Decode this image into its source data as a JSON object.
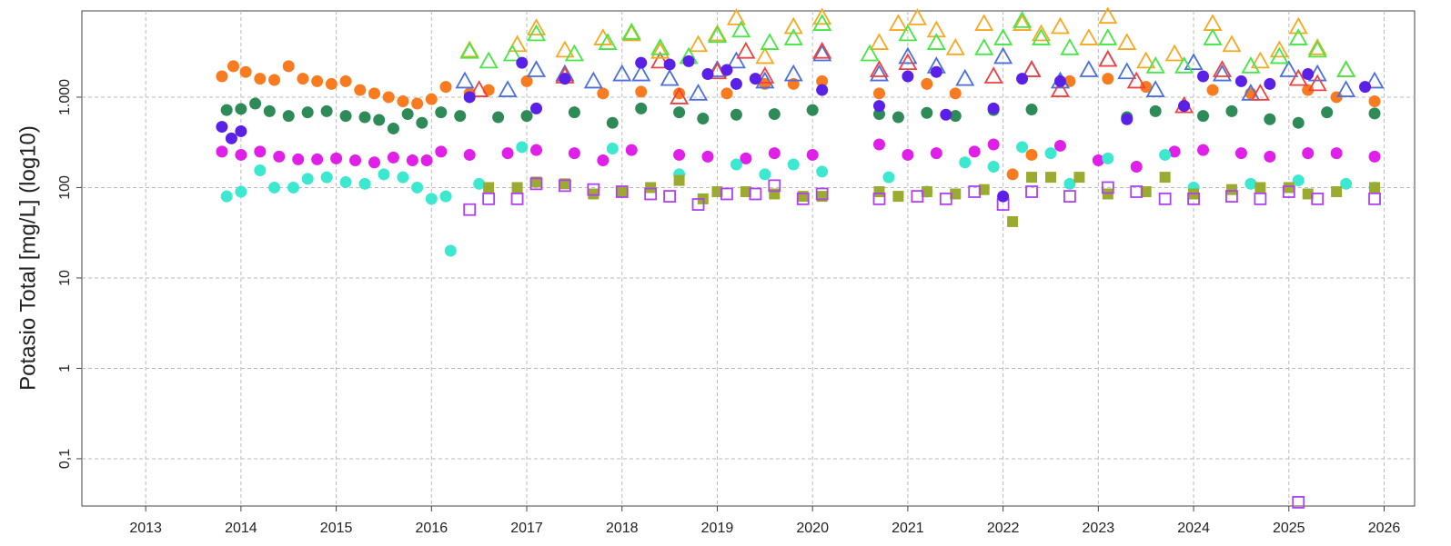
{
  "chart_data": {
    "type": "scatter",
    "y_label": "Potasio Total [mg/L] (log10)",
    "log_y": true,
    "grid": true,
    "xlim": [
      2012.33,
      2026.32
    ],
    "xticks": [
      2013,
      2014,
      2015,
      2016,
      2017,
      2018,
      2019,
      2020,
      2021,
      2022,
      2023,
      2024,
      2025,
      2026
    ],
    "ylim": [
      0.03,
      9000
    ],
    "yticks": [
      {
        "value": 0.1,
        "label": "0,1"
      },
      1,
      10,
      100,
      {
        "value": 1000,
        "label": "1.000"
      }
    ],
    "series": [
      {
        "color": "#f97b1f",
        "marker": "circle",
        "filled": true,
        "x": [
          2013.8,
          2013.92,
          2014.05,
          2014.2,
          2014.35,
          2014.5,
          2014.65,
          2014.8,
          2014.95,
          2015.1,
          2015.25,
          2015.4,
          2015.55,
          2015.7,
          2015.85,
          2016.0,
          2016.15,
          2016.4,
          2016.6,
          2017.0,
          2017.4,
          2017.8,
          2018.2,
          2018.6,
          2019.1,
          2019.5,
          2019.8,
          2020.1,
          2020.7,
          2021.2,
          2021.5,
          2022.1,
          2022.3,
          2022.7,
          2023.1,
          2023.5,
          2023.9,
          2024.2,
          2024.6,
          2025.2,
          2025.5,
          2025.9
        ],
        "values": [
          1700,
          2200,
          1900,
          1600,
          1550,
          2200,
          1600,
          1500,
          1400,
          1500,
          1200,
          1100,
          1000,
          900,
          850,
          950,
          1300,
          1100,
          1200,
          1500,
          1600,
          1100,
          1150,
          1100,
          1100,
          1400,
          1400,
          1500,
          1100,
          1400,
          1100,
          140,
          230,
          1500,
          1600,
          1300,
          800,
          1200,
          1100,
          1200,
          1000,
          900
        ]
      },
      {
        "color": "#2e8b57",
        "marker": "circle",
        "filled": true,
        "x": [
          2013.85,
          2014.0,
          2014.15,
          2014.3,
          2014.5,
          2014.7,
          2014.9,
          2015.1,
          2015.3,
          2015.45,
          2015.6,
          2015.75,
          2015.9,
          2016.1,
          2016.3,
          2016.7,
          2017.0,
          2017.5,
          2017.9,
          2018.2,
          2018.6,
          2018.85,
          2019.2,
          2019.6,
          2020.0,
          2020.7,
          2020.9,
          2021.2,
          2021.5,
          2021.9,
          2022.3,
          2023.3,
          2023.6,
          2024.1,
          2024.4,
          2024.8,
          2025.1,
          2025.4,
          2025.9
        ],
        "values": [
          720,
          740,
          850,
          700,
          620,
          680,
          700,
          620,
          600,
          560,
          450,
          650,
          520,
          680,
          620,
          600,
          620,
          680,
          520,
          750,
          680,
          580,
          640,
          650,
          720,
          650,
          600,
          670,
          620,
          720,
          730,
          600,
          700,
          620,
          700,
          570,
          520,
          680,
          660
        ]
      },
      {
        "color": "#e020e8",
        "marker": "circle",
        "filled": true,
        "x": [
          2013.8,
          2014.0,
          2014.2,
          2014.4,
          2014.6,
          2014.8,
          2015.0,
          2015.2,
          2015.4,
          2015.6,
          2015.8,
          2015.95,
          2016.1,
          2016.4,
          2016.8,
          2017.1,
          2017.5,
          2017.8,
          2018.1,
          2018.6,
          2018.9,
          2019.3,
          2019.6,
          2020.0,
          2020.7,
          2021.0,
          2021.3,
          2021.7,
          2021.9,
          2022.6,
          2023.0,
          2023.4,
          2023.8,
          2024.1,
          2024.5,
          2024.8,
          2025.2,
          2025.5,
          2025.9
        ],
        "values": [
          250,
          230,
          250,
          220,
          205,
          205,
          210,
          200,
          190,
          215,
          200,
          200,
          250,
          230,
          240,
          260,
          240,
          200,
          260,
          230,
          220,
          210,
          240,
          230,
          300,
          230,
          240,
          250,
          300,
          290,
          200,
          170,
          250,
          260,
          240,
          220,
          240,
          240,
          220
        ]
      },
      {
        "color": "#3de8d0",
        "marker": "circle",
        "filled": true,
        "x": [
          2013.85,
          2014.0,
          2014.2,
          2014.35,
          2014.55,
          2014.7,
          2014.9,
          2015.1,
          2015.3,
          2015.5,
          2015.7,
          2015.85,
          2016.0,
          2016.15,
          2016.2,
          2016.5,
          2016.95,
          2017.9,
          2018.6,
          2019.2,
          2019.5,
          2019.8,
          2020.1,
          2020.8,
          2021.2,
          2021.6,
          2021.9,
          2022.2,
          2022.5,
          2022.7,
          2023.1,
          2023.7,
          2024.0,
          2024.6,
          2025.1,
          2025.6,
          2025.9
        ],
        "values": [
          80,
          90,
          155,
          100,
          100,
          125,
          130,
          115,
          110,
          140,
          130,
          100,
          75,
          80,
          20,
          110,
          280,
          270,
          140,
          180,
          140,
          180,
          150,
          130,
          90,
          190,
          170,
          280,
          240,
          110,
          210,
          230,
          100,
          110,
          120,
          110,
          100
        ]
      },
      {
        "color": "#9aab2f",
        "marker": "square",
        "filled": true,
        "x": [
          2016.6,
          2016.9,
          2017.1,
          2017.4,
          2017.7,
          2018.0,
          2018.3,
          2018.6,
          2018.85,
          2019.0,
          2019.3,
          2019.6,
          2019.9,
          2020.1,
          2020.7,
          2020.9,
          2021.2,
          2021.5,
          2021.8,
          2022.1,
          2022.3,
          2022.5,
          2022.8,
          2023.1,
          2023.5,
          2023.7,
          2024.0,
          2024.4,
          2024.7,
          2025.0,
          2025.2,
          2025.5,
          2025.9
        ],
        "values": [
          100,
          100,
          115,
          110,
          85,
          90,
          100,
          120,
          75,
          90,
          90,
          85,
          80,
          80,
          90,
          80,
          90,
          85,
          95,
          42,
          130,
          130,
          130,
          85,
          90,
          130,
          85,
          95,
          100,
          100,
          85,
          90,
          100
        ]
      },
      {
        "color": "#b040f0",
        "marker": "square",
        "filled": false,
        "x": [
          2016.4,
          2016.6,
          2016.9,
          2017.1,
          2017.4,
          2017.7,
          2018.0,
          2018.3,
          2018.5,
          2018.8,
          2019.1,
          2019.4,
          2019.6,
          2019.9,
          2020.1,
          2020.7,
          2021.1,
          2021.4,
          2021.7,
          2022.0,
          2022.3,
          2022.7,
          2023.1,
          2023.4,
          2023.7,
          2024.0,
          2024.4,
          2024.7,
          2025.0,
          2025.1,
          2025.3,
          2025.9
        ],
        "values": [
          57,
          75,
          75,
          110,
          105,
          95,
          90,
          85,
          80,
          65,
          85,
          85,
          105,
          75,
          85,
          75,
          80,
          75,
          90,
          65,
          90,
          80,
          100,
          90,
          75,
          75,
          80,
          75,
          90,
          0.033,
          75,
          75
        ]
      },
      {
        "color": "#4a6fe0",
        "marker": "triangle",
        "filled": false,
        "x": [
          2016.35,
          2016.8,
          2017.1,
          2017.4,
          2017.7,
          2018.0,
          2018.2,
          2018.5,
          2018.8,
          2019.0,
          2019.2,
          2019.5,
          2019.8,
          2020.1,
          2020.7,
          2021.0,
          2021.3,
          2021.6,
          2022.0,
          2022.3,
          2022.6,
          2022.9,
          2023.1,
          2023.3,
          2023.6,
          2024.0,
          2024.3,
          2024.6,
          2025.0,
          2025.3,
          2025.6,
          2025.9
        ],
        "values": [
          1500,
          1200,
          2000,
          1800,
          1500,
          1800,
          1800,
          1600,
          1100,
          2000,
          2500,
          1500,
          1800,
          3000,
          1800,
          2800,
          2200,
          1600,
          2800,
          2000,
          1500,
          2000,
          2600,
          1900,
          1200,
          2400,
          1800,
          1100,
          2000,
          1800,
          1200,
          1500
        ]
      },
      {
        "color": "#f04040",
        "marker": "triangle",
        "filled": false,
        "x": [
          2016.5,
          2017.4,
          2018.4,
          2018.6,
          2019.0,
          2019.3,
          2019.5,
          2020.1,
          2020.7,
          2021.0,
          2021.9,
          2022.3,
          2022.6,
          2023.1,
          2023.4,
          2023.9,
          2024.3,
          2024.7,
          2025.1,
          2025.3
        ],
        "values": [
          1200,
          1700,
          2500,
          1000,
          1900,
          3200,
          1700,
          3200,
          2000,
          2400,
          1700,
          2000,
          1200,
          2600,
          1500,
          800,
          2000,
          1100,
          1600,
          1400
        ]
      },
      {
        "color": "#f8a820",
        "marker": "triangle",
        "filled": false,
        "x": [
          2016.4,
          2016.9,
          2017.1,
          2017.4,
          2017.8,
          2018.1,
          2018.4,
          2018.8,
          2019.0,
          2019.2,
          2019.5,
          2019.8,
          2020.1,
          2020.7,
          2020.9,
          2021.1,
          2021.3,
          2021.5,
          2021.8,
          2022.2,
          2022.4,
          2022.6,
          2022.9,
          2023.1,
          2023.3,
          2023.5,
          2023.8,
          2024.2,
          2024.4,
          2024.7,
          2024.9,
          2025.1,
          2025.3,
          2025.6
        ],
        "values": [
          3300,
          3800,
          5800,
          3300,
          4500,
          5000,
          3200,
          3800,
          5000,
          7500,
          2800,
          6000,
          7600,
          4000,
          6500,
          7500,
          5500,
          3500,
          6500,
          6500,
          5000,
          6000,
          4500,
          7800,
          4000,
          2500,
          3000,
          6500,
          3800,
          2500,
          3300,
          6000,
          3500,
          2000
        ]
      },
      {
        "color": "#44e844",
        "marker": "triangle",
        "filled": false,
        "x": [
          2016.4,
          2016.6,
          2016.85,
          2017.1,
          2017.5,
          2017.85,
          2018.1,
          2018.4,
          2018.7,
          2019.0,
          2019.25,
          2019.55,
          2019.8,
          2020.1,
          2020.6,
          2021.0,
          2021.3,
          2021.8,
          2022.0,
          2022.2,
          2022.4,
          2022.7,
          2023.1,
          2023.6,
          2023.9,
          2024.2,
          2024.6,
          2024.9,
          2025.1,
          2025.3,
          2025.6
        ],
        "values": [
          3200,
          2500,
          3000,
          5000,
          3000,
          4000,
          5200,
          3500,
          2800,
          4800,
          5500,
          4000,
          4500,
          6500,
          3000,
          5000,
          4000,
          3500,
          4500,
          7000,
          4500,
          3500,
          4500,
          2200,
          2200,
          4500,
          2200,
          2800,
          4500,
          3300,
          2000
        ]
      },
      {
        "color": "#5a20e8",
        "marker": "circle",
        "filled": true,
        "x": [
          2013.8,
          2013.9,
          2014.0,
          2016.4,
          2016.95,
          2017.1,
          2017.4,
          2018.2,
          2018.5,
          2018.7,
          2018.9,
          2019.1,
          2019.2,
          2019.4,
          2020.1,
          2020.7,
          2021.0,
          2021.3,
          2021.4,
          2021.9,
          2022.0,
          2022.2,
          2022.6,
          2023.3,
          2023.9,
          2024.1,
          2024.5,
          2024.8,
          2025.2,
          2025.8
        ],
        "values": [
          470,
          350,
          420,
          1000,
          2400,
          750,
          1600,
          2400,
          2300,
          2500,
          1800,
          2000,
          1400,
          1600,
          1200,
          800,
          1700,
          1900,
          640,
          750,
          80,
          1600,
          1500,
          570,
          800,
          1700,
          1500,
          1400,
          1800,
          1300
        ]
      }
    ]
  }
}
